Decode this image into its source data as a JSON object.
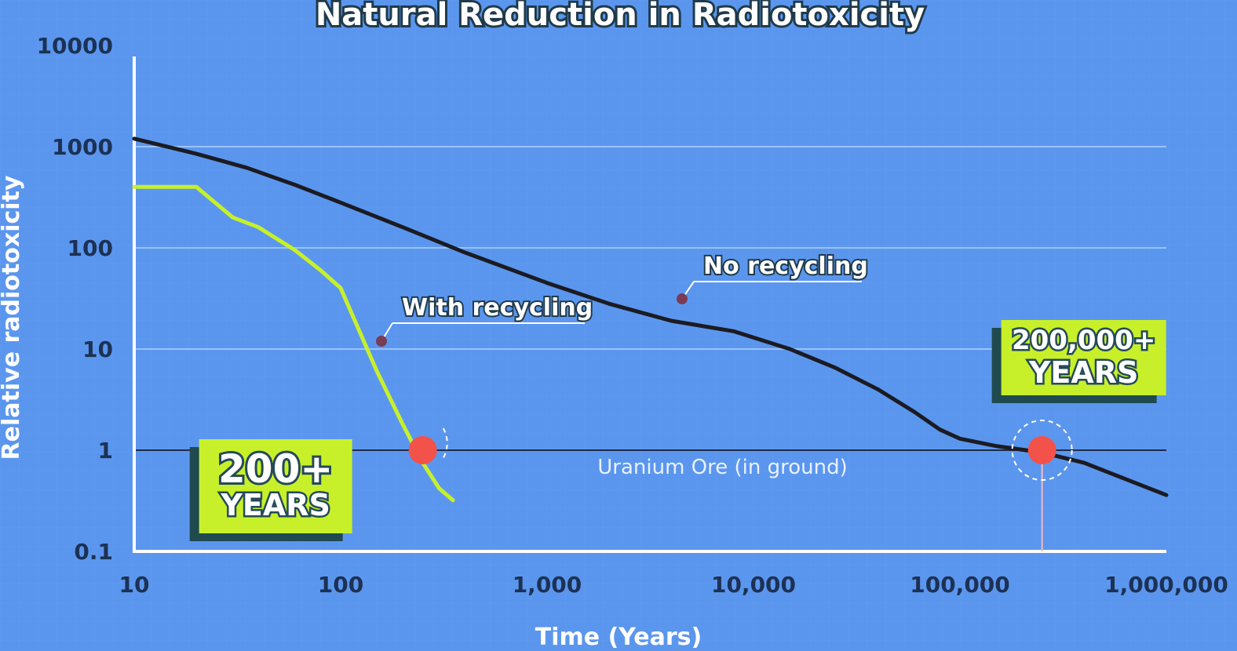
{
  "chart_data": {
    "type": "line",
    "title": "Natural Reduction in Radiotoxicity",
    "xlabel": "Time (Years)",
    "ylabel": "Relative radiotoxicity",
    "x_scale": "log",
    "y_scale": "log",
    "xlim": [
      10,
      1000000
    ],
    "ylim": [
      0.1,
      10000
    ],
    "x_ticks": [
      "10",
      "100",
      "1,000",
      "10,000",
      "100,000",
      "1,000,000"
    ],
    "y_ticks": [
      "10000",
      "1000",
      "100",
      "10",
      "1",
      "0.1"
    ],
    "grid": "horizontal",
    "series": [
      {
        "name": "No recycling",
        "color": "#1b1b22",
        "x": [
          10,
          20,
          35,
          60,
          100,
          200,
          400,
          1000,
          2000,
          4000,
          8000,
          15000,
          25000,
          40000,
          60000,
          80000,
          100000,
          150000,
          250000,
          400000,
          1000000
        ],
        "y": [
          1200,
          850,
          620,
          420,
          280,
          160,
          90,
          45,
          28,
          19,
          15,
          10,
          6.5,
          4,
          2.4,
          1.6,
          1.3,
          1.1,
          0.95,
          0.75,
          0.36
        ]
      },
      {
        "name": "With recycling",
        "color": "#c8f02a",
        "x": [
          10,
          20,
          30,
          40,
          50,
          60,
          80,
          100,
          150,
          200,
          250,
          300,
          350
        ],
        "y": [
          400,
          400,
          200,
          160,
          120,
          95,
          60,
          40,
          6,
          1.8,
          0.75,
          0.42,
          0.32
        ]
      }
    ],
    "reference_line": {
      "label": "Uranium Ore (in ground)",
      "y": 1
    },
    "markers": [
      {
        "x": 250,
        "y": 1,
        "color": "#f2524a"
      },
      {
        "x": 250000,
        "y": 1,
        "color": "#f2524a"
      }
    ],
    "annotations": [
      {
        "text": "With recycling",
        "target_series": "With recycling"
      },
      {
        "text": "No recycling",
        "target_series": "No recycling"
      }
    ],
    "badges": [
      {
        "line1": "200+",
        "line2": "YEARS",
        "x": 250
      },
      {
        "line1": "200,000+",
        "line2": "YEARS",
        "x": 250000
      }
    ]
  },
  "colors": {
    "background": "#5b96ee",
    "badge_fill": "#c8f02a",
    "badge_shadow": "#1f4a4f",
    "axis": "#ffffff",
    "grid": "#9cc2f7"
  }
}
